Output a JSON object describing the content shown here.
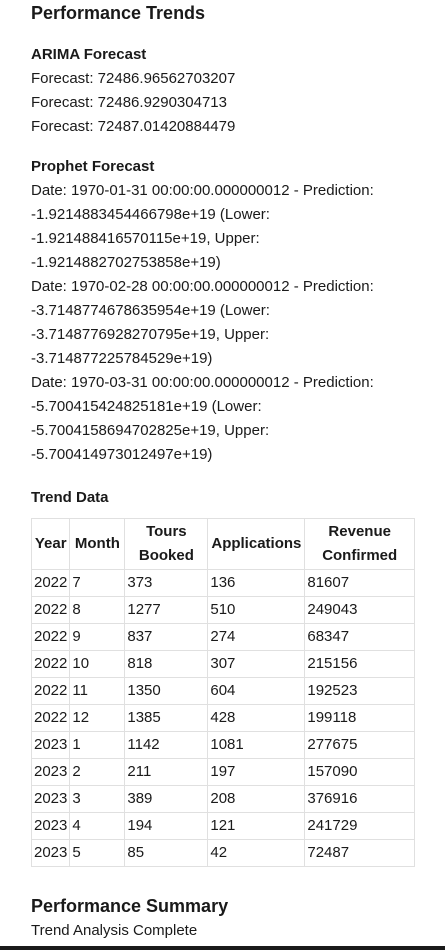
{
  "page": {
    "title": "Performance Trends"
  },
  "arima": {
    "title": "ARIMA Forecast",
    "lines": [
      "Forecast: 72486.96562703207",
      "Forecast: 72486.9290304713",
      "Forecast: 72487.01420884479"
    ]
  },
  "prophet": {
    "title": "Prophet Forecast",
    "lines": [
      "Date: 1970-01-31 00:00:00.000000012 - Prediction:",
      "-1.9214883454466798e+19 (Lower:",
      "-1.921488416570115e+19, Upper:",
      "-1.9214882702753858e+19)",
      "Date: 1970-02-28 00:00:00.000000012 - Prediction:",
      "-3.7148774678635954e+19 (Lower:",
      "-3.7148776928270795e+19, Upper:",
      "-3.714877225784529e+19)",
      "Date: 1970-03-31 00:00:00.000000012 - Prediction:",
      "-5.700415424825181e+19 (Lower:",
      "-5.7004158694702825e+19, Upper:",
      "-5.700414973012497e+19)"
    ]
  },
  "trend": {
    "title": "Trend Data",
    "headers": [
      "Year",
      "Month",
      "Tours Booked",
      "Applications",
      "Revenue Confirmed"
    ],
    "rows": [
      [
        "2022",
        "7",
        "373",
        "136",
        "81607"
      ],
      [
        "2022",
        "8",
        "1277",
        "510",
        "249043"
      ],
      [
        "2022",
        "9",
        "837",
        "274",
        "68347"
      ],
      [
        "2022",
        "10",
        "818",
        "307",
        "215156"
      ],
      [
        "2022",
        "11",
        "1350",
        "604",
        "192523"
      ],
      [
        "2022",
        "12",
        "1385",
        "428",
        "199118"
      ],
      [
        "2023",
        "1",
        "1142",
        "1081",
        "277675"
      ],
      [
        "2023",
        "2",
        "211",
        "197",
        "157090"
      ],
      [
        "2023",
        "3",
        "389",
        "208",
        "376916"
      ],
      [
        "2023",
        "4",
        "194",
        "121",
        "241729"
      ],
      [
        "2023",
        "5",
        "85",
        "42",
        "72487"
      ]
    ]
  },
  "summary": {
    "title": "Performance Summary",
    "text": "Trend Analysis Complete"
  }
}
